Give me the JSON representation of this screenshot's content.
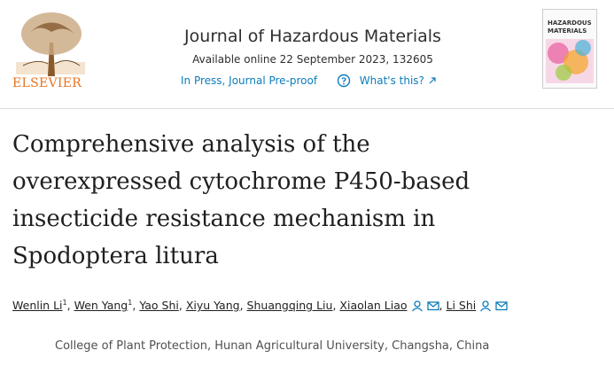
{
  "header": {
    "publisher": "ELSEVIER",
    "journal": "Journal of Hazardous Materials",
    "available": "Available online 22 September 2023, 132605",
    "status": "In Press, Journal Pre-proof",
    "whats_this": "What's this?",
    "cover": [
      "HAZARDOUS",
      "MATERIALS"
    ]
  },
  "article": {
    "title_lines": [
      "Comprehensive analysis of the",
      "overexpressed cytochrome P450-based",
      "insecticide resistance mechanism in",
      "Spodoptera litura"
    ],
    "authors": [
      {
        "name": "Wenlin Li",
        "sup": "1",
        "sep": ","
      },
      {
        "name": "Wen Yang",
        "sup": "1",
        "sep": ","
      },
      {
        "name": "Yao Shi",
        "sep": ","
      },
      {
        "name": "Xiyu Yang",
        "sep": ","
      },
      {
        "name": "Shuangqing Liu",
        "sep": ","
      },
      {
        "name": "Xiaolan Liao",
        "icons": true,
        "sep": ","
      },
      {
        "name": "Li Shi",
        "icons": true
      }
    ],
    "affiliation": "College of Plant Protection, Hunan Agricultural University, Changsha, China"
  }
}
